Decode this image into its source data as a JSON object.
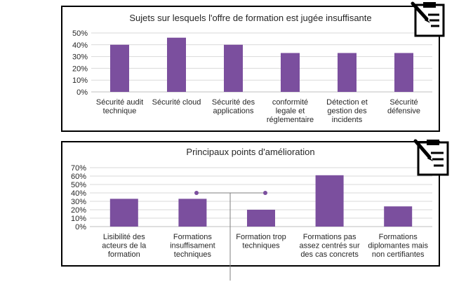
{
  "chart_data": [
    {
      "type": "bar",
      "title": "Sujets sur lesquels l'offre de formation est jugée insuffisante",
      "categories": [
        [
          "Sécurité audit",
          "technique"
        ],
        [
          "Sécurité cloud"
        ],
        [
          "Sécurité des",
          "applications"
        ],
        [
          "conformité",
          "legale et",
          "réglementaire"
        ],
        [
          "Détection et",
          "gestion des",
          "incidents"
        ],
        [
          "Sécurité",
          "défensive"
        ]
      ],
      "values": [
        0.4,
        0.46,
        0.4,
        0.33,
        0.33,
        0.33
      ],
      "ylim": [
        0,
        0.5
      ],
      "yticks": [
        "0%",
        "10%",
        "20%",
        "30%",
        "40%",
        "50%"
      ],
      "grid": true,
      "bar_color": "#7b4f9e"
    },
    {
      "type": "bar",
      "title": "Principaux points d'amélioration",
      "categories": [
        [
          "Lisibilité des",
          "acteurs de la",
          "formation"
        ],
        [
          "Formations",
          "insuffisament",
          "techniques"
        ],
        [
          "Formation trop",
          "techniques"
        ],
        [
          "Formations pas",
          "assez centrés sur",
          "des cas concrets"
        ],
        [
          "Formations",
          "diplomantes mais",
          "non certifiantes"
        ]
      ],
      "values": [
        0.33,
        0.33,
        0.2,
        0.61,
        0.24
      ],
      "ylim": [
        0,
        0.7
      ],
      "yticks": [
        "0%",
        "10%",
        "20%",
        "30%",
        "40%",
        "50%",
        "60%",
        "70%"
      ],
      "grid": true,
      "bar_color": "#7b4f9e"
    }
  ],
  "icons": [
    "clipboard-pencil-icon",
    "clipboard-pencil-icon"
  ]
}
